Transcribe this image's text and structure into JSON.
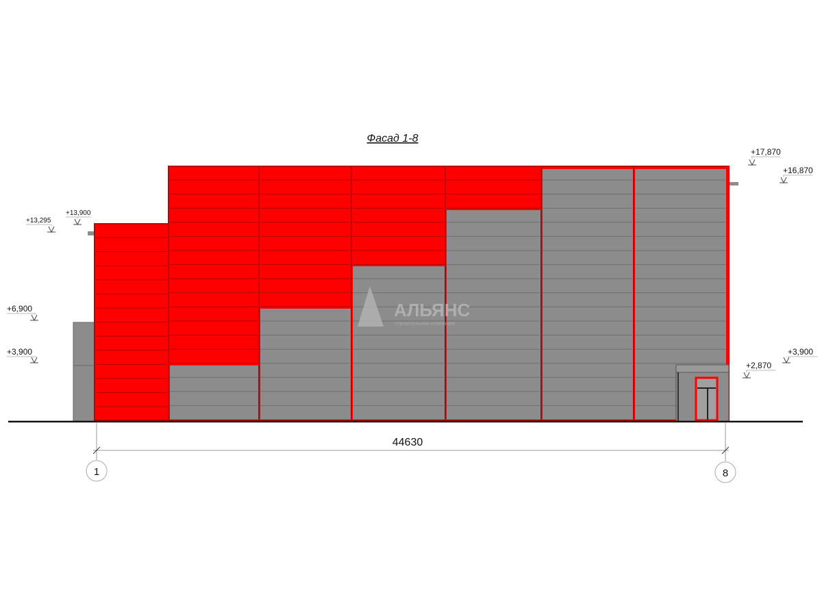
{
  "title": "Фасад 1-8",
  "dimension": "44630",
  "axes": [
    "1",
    "8"
  ],
  "watermark": {
    "name": "АЛЬЯНС",
    "subtitle": "строительная компания"
  },
  "elevations_left": [
    "+13,295",
    "+13,900",
    "+6,900",
    "+3,900"
  ],
  "elevations_right": [
    "+17,870",
    "+16,870",
    "+3,900",
    "+2,870"
  ],
  "colors": {
    "red": "#ff0000",
    "red_edge": "#c00000",
    "gray": "#8c8c8c",
    "line": "#6e6e6e"
  }
}
